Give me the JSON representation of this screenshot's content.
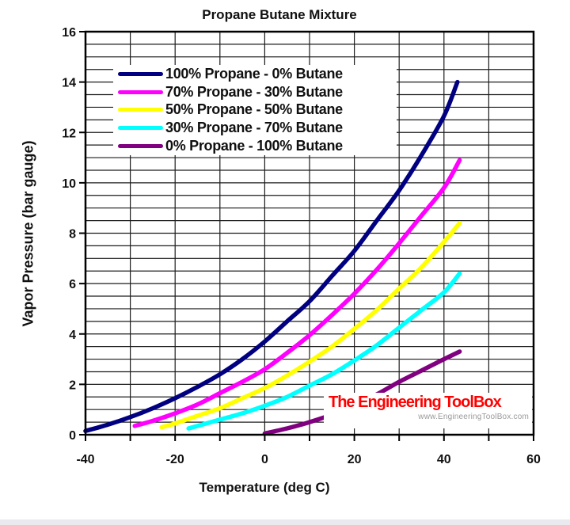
{
  "page": {
    "background": "#ffffff",
    "footer_strip_color": "#e9e9ee"
  },
  "chart_data": {
    "type": "line",
    "title": "Propane Butane Mixture",
    "xlabel": "Temperature (deg C)",
    "ylabel": "Vapor Pressure (bar gauge)",
    "xlim": [
      -40,
      60
    ],
    "ylim": [
      0,
      16
    ],
    "x_major_ticks": [
      -40,
      -20,
      0,
      20,
      40,
      60
    ],
    "y_major_ticks": [
      0,
      2,
      4,
      6,
      8,
      10,
      12,
      14,
      16
    ],
    "x_minor_step": 10,
    "y_minor_step": 0.5,
    "grid": "minor gridlines on (x every 10 degC, y every 0.5 bar)",
    "legend_position": "top-left",
    "series": [
      {
        "name": "100% Propane - 0% Butane",
        "color": "#000080",
        "points": [
          [
            -40,
            0.15
          ],
          [
            -35,
            0.4
          ],
          [
            -30,
            0.7
          ],
          [
            -25,
            1.05
          ],
          [
            -20,
            1.45
          ],
          [
            -15,
            1.9
          ],
          [
            -10,
            2.4
          ],
          [
            -5,
            3.0
          ],
          [
            0,
            3.7
          ],
          [
            5,
            4.5
          ],
          [
            10,
            5.3
          ],
          [
            15,
            6.3
          ],
          [
            20,
            7.3
          ],
          [
            25,
            8.5
          ],
          [
            30,
            9.7
          ],
          [
            35,
            11.1
          ],
          [
            40,
            12.65
          ],
          [
            43,
            14.0
          ]
        ]
      },
      {
        "name": "70% Propane - 30% Butane",
        "color": "#FF00FF",
        "points": [
          [
            -29,
            0.35
          ],
          [
            -25,
            0.55
          ],
          [
            -20,
            0.85
          ],
          [
            -15,
            1.2
          ],
          [
            -10,
            1.65
          ],
          [
            -5,
            2.1
          ],
          [
            0,
            2.6
          ],
          [
            5,
            3.25
          ],
          [
            10,
            3.95
          ],
          [
            15,
            4.75
          ],
          [
            20,
            5.6
          ],
          [
            25,
            6.55
          ],
          [
            30,
            7.6
          ],
          [
            35,
            8.7
          ],
          [
            40,
            9.8
          ],
          [
            43.5,
            10.9
          ]
        ]
      },
      {
        "name": "50% Propane - 50% Butane",
        "color": "#FFFF00",
        "points": [
          [
            -23,
            0.3
          ],
          [
            -20,
            0.45
          ],
          [
            -15,
            0.75
          ],
          [
            -10,
            1.05
          ],
          [
            -5,
            1.45
          ],
          [
            0,
            1.85
          ],
          [
            5,
            2.35
          ],
          [
            10,
            2.9
          ],
          [
            15,
            3.5
          ],
          [
            20,
            4.2
          ],
          [
            25,
            4.95
          ],
          [
            30,
            5.8
          ],
          [
            35,
            6.65
          ],
          [
            40,
            7.65
          ],
          [
            43.5,
            8.4
          ]
        ]
      },
      {
        "name": "30% Propane - 70% Butane",
        "color": "#00FFFF",
        "points": [
          [
            -17,
            0.25
          ],
          [
            -15,
            0.35
          ],
          [
            -10,
            0.6
          ],
          [
            -5,
            0.85
          ],
          [
            0,
            1.15
          ],
          [
            5,
            1.5
          ],
          [
            10,
            1.95
          ],
          [
            15,
            2.4
          ],
          [
            20,
            2.95
          ],
          [
            25,
            3.55
          ],
          [
            30,
            4.25
          ],
          [
            35,
            4.95
          ],
          [
            40,
            5.65
          ],
          [
            43.5,
            6.4
          ]
        ]
      },
      {
        "name": "0% Propane - 100% Butane",
        "color": "#800080",
        "points": [
          [
            0,
            0.05
          ],
          [
            5,
            0.25
          ],
          [
            10,
            0.5
          ],
          [
            15,
            0.8
          ],
          [
            20,
            1.2
          ],
          [
            25,
            1.6
          ],
          [
            30,
            2.1
          ],
          [
            35,
            2.55
          ],
          [
            40,
            3.0
          ],
          [
            43.5,
            3.3
          ]
        ]
      }
    ],
    "watermark": {
      "title": "The Engineering ToolBox",
      "subtitle": "www.EngineeringToolBox.com",
      "title_color": "#ff0000",
      "subtitle_color": "#999999"
    }
  }
}
